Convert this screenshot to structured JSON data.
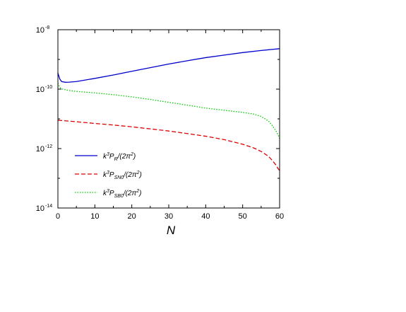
{
  "chart_data": {
    "type": "line",
    "title": "",
    "xlabel": "N",
    "ylabel": "",
    "xlim": [
      0,
      60
    ],
    "ylim_log10": [
      -14,
      -8
    ],
    "y_scale": "log",
    "grid": false,
    "legend_placement": "bottom-left",
    "x_ticks": [
      "0",
      "10",
      "20",
      "30",
      "40",
      "50",
      "60"
    ],
    "y_ticks": [
      {
        "base": "10",
        "exp": "-8"
      },
      {
        "base": "10",
        "exp": "-10"
      },
      {
        "base": "10",
        "exp": "-12"
      },
      {
        "base": "10",
        "exp": "-14"
      }
    ],
    "series": [
      {
        "name": "k3P_R/(2π2)",
        "legend": {
          "pre": "k",
          "sup1": "3",
          "mid": "P",
          "sub": "R",
          "post": "/(2π",
          "sup2": "2",
          "end": ")"
        },
        "color": "#0000cc",
        "dash": "solid",
        "x": [
          0,
          0.5,
          1,
          2,
          3,
          5,
          10,
          15,
          20,
          25,
          30,
          35,
          40,
          45,
          50,
          55,
          60
        ],
        "y": [
          3.5e-10,
          2.2e-10,
          1.8e-10,
          1.7e-10,
          1.72e-10,
          1.8e-10,
          2.3e-10,
          3e-10,
          4e-10,
          5.3e-10,
          7e-10,
          9e-10,
          1.15e-09,
          1.4e-09,
          1.7e-09,
          2e-09,
          2.3e-09
        ]
      },
      {
        "name": "k3P_SN0/(2π2)",
        "legend": {
          "pre": "k",
          "sup1": "3",
          "mid": "P",
          "sub": "SN0",
          "post": "/(2π",
          "sup2": "2",
          "end": ")"
        },
        "color": "#dd0000",
        "dash": "dashed",
        "x": [
          0,
          5,
          10,
          15,
          20,
          25,
          30,
          35,
          40,
          45,
          50,
          53,
          55,
          57,
          58,
          59,
          59.5,
          60
        ],
        "y": [
          9e-12,
          8e-12,
          7e-12,
          6.2e-12,
          5.4e-12,
          4.6e-12,
          3.9e-12,
          3.2e-12,
          2.6e-12,
          2e-12,
          1.4e-12,
          1.05e-12,
          8e-13,
          5.5e-13,
          4e-13,
          2.8e-13,
          2.2e-13,
          1.8e-13
        ]
      },
      {
        "name": "k3P_SB0/(2π2)",
        "legend": {
          "pre": "k",
          "sup1": "3",
          "mid": "P",
          "sub": "SB0",
          "post": "/(2π",
          "sup2": "2",
          "end": ")"
        },
        "color": "#00cc00",
        "dash": "dotted",
        "x": [
          0,
          0.5,
          1,
          3,
          5,
          10,
          15,
          20,
          25,
          30,
          35,
          40,
          45,
          50,
          53,
          55,
          57,
          58,
          59,
          59.5,
          60
        ],
        "y": [
          1.6e-10,
          1.15e-10,
          1.02e-10,
          9e-11,
          8.4e-11,
          7.5e-11,
          6.5e-11,
          5.5e-11,
          4.5e-11,
          3.6e-11,
          2.9e-11,
          2.3e-11,
          1.95e-11,
          1.65e-11,
          1.45e-11,
          1.2e-11,
          8.5e-12,
          6e-12,
          4e-12,
          3e-12,
          2.2e-12
        ]
      }
    ]
  }
}
